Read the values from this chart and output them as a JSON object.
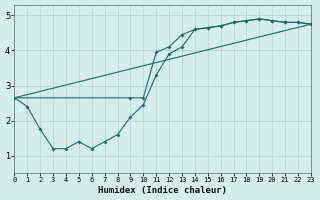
{
  "title": "",
  "xlabel": "Humidex (Indice chaleur)",
  "ylabel": "",
  "background_color": "#d5edeb",
  "grid_color": "#b8d8d5",
  "line_color": "#1a6b6b",
  "xlim": [
    0,
    23
  ],
  "ylim": [
    0.5,
    5.3
  ],
  "xticks": [
    0,
    1,
    2,
    3,
    4,
    5,
    6,
    7,
    8,
    9,
    10,
    11,
    12,
    13,
    14,
    15,
    16,
    17,
    18,
    19,
    20,
    21,
    22,
    23
  ],
  "yticks": [
    1,
    2,
    3,
    4,
    5
  ],
  "line1_x": [
    0,
    1,
    2,
    3,
    4,
    5,
    6,
    7,
    8,
    9,
    10,
    11,
    12,
    13,
    14,
    15,
    16,
    17,
    18,
    19,
    20,
    21,
    22,
    23
  ],
  "line1_y": [
    2.65,
    2.4,
    1.75,
    1.2,
    1.2,
    1.4,
    1.2,
    1.4,
    1.6,
    2.1,
    2.45,
    3.3,
    3.9,
    4.1,
    4.6,
    4.65,
    4.7,
    4.8,
    4.85,
    4.9,
    4.85,
    4.8,
    4.8,
    4.75
  ],
  "line2_x": [
    0,
    9,
    10,
    11,
    12,
    13,
    14,
    15,
    16,
    17,
    18,
    19,
    20,
    21,
    22,
    23
  ],
  "line2_y": [
    2.65,
    2.65,
    2.65,
    3.95,
    4.1,
    4.45,
    4.6,
    4.65,
    4.7,
    4.8,
    4.85,
    4.9,
    4.85,
    4.8,
    4.8,
    4.75
  ],
  "line3_x": [
    0,
    23
  ],
  "line3_y": [
    2.65,
    4.75
  ]
}
